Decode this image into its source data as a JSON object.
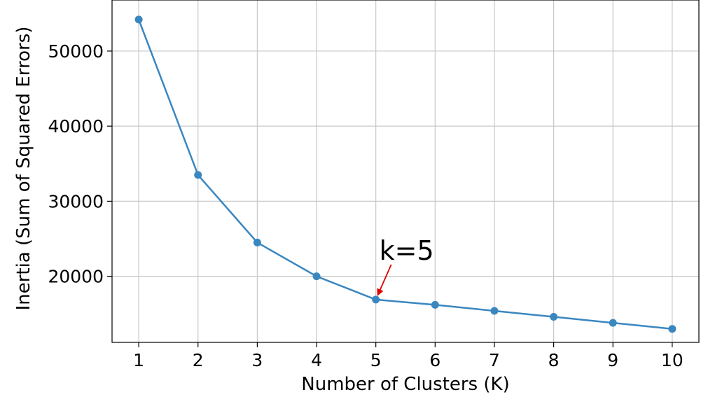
{
  "chart_data": {
    "type": "line",
    "title": "",
    "xlabel": "Number of Clusters (K)",
    "ylabel": "Inertia (Sum of Squared Errors)",
    "x": [
      1,
      2,
      3,
      4,
      5,
      6,
      7,
      8,
      9,
      10
    ],
    "series": [
      {
        "values": [
          54200,
          33500,
          24500,
          20000,
          16900,
          16200,
          15400,
          14600,
          13800,
          13000
        ]
      }
    ],
    "xlim": [
      0.55,
      10.45
    ],
    "ylim": [
      11200,
      56800
    ],
    "xticks": [
      1,
      2,
      3,
      4,
      5,
      6,
      7,
      8,
      9,
      10
    ],
    "yticks": [
      20000,
      30000,
      40000,
      50000
    ],
    "grid": true,
    "colors": {
      "line": "#3a87c0",
      "annotation_arrow": "#e00000"
    },
    "annotation": {
      "text": "k=5",
      "x": 5,
      "y": 16900
    }
  }
}
